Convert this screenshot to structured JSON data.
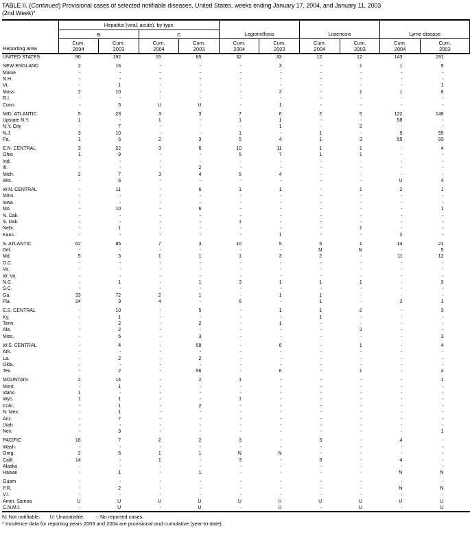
{
  "title": {
    "part1": "TABLE II. (",
    "part2_italic": "Continued",
    "part3": ") Provisional cases of selected notifiable diseases, United States, weeks ending January 17, 2004, and January 11, 2003",
    "line2": "(2nd Week)*"
  },
  "header": {
    "reporting_area": "Reporting area",
    "groups": {
      "hepatitis": "Hepatitis (viral, acute), by type",
      "hep_b": "B",
      "hep_c": "C",
      "legionellosis": "Legionellosis",
      "listeriosis": "Listeriosis",
      "lyme": "Lyme disease"
    },
    "col_headers": [
      {
        "l1": "Cum.",
        "l2": "2004"
      },
      {
        "l1": "Cum.",
        "l2": "2003"
      },
      {
        "l1": "Cum.",
        "l2": "2004"
      },
      {
        "l1": "Cum.",
        "l2": "2003"
      },
      {
        "l1": "Cum.",
        "l2": "2004"
      },
      {
        "l1": "Cum.",
        "l2": "2003"
      },
      {
        "l1": "Cum.",
        "l2": "2004"
      },
      {
        "l1": "Cum.",
        "l2": "2003"
      },
      {
        "l1": "Cum.",
        "l2": "2004"
      },
      {
        "l1": "Cum.",
        "l2": "2003"
      }
    ]
  },
  "sections": [
    {
      "rows": [
        {
          "area": "UNITED STATES",
          "values": [
            "90",
            "192",
            "15",
            "85",
            "32",
            "33",
            "12",
            "12",
            "143",
            "191"
          ]
        }
      ]
    },
    {
      "rows": [
        {
          "area": "NEW ENGLAND",
          "values": [
            "2",
            "16",
            "-",
            "-",
            "-",
            "3",
            "-",
            "1",
            "1",
            "9"
          ]
        },
        {
          "area": "Maine",
          "values": [
            "-",
            "-",
            "-",
            "-",
            "-",
            "-",
            "-",
            "-",
            "-",
            "-"
          ]
        },
        {
          "area": "N.H.",
          "values": [
            "-",
            "-",
            "-",
            "-",
            "-",
            "-",
            "-",
            "-",
            "-",
            "-"
          ]
        },
        {
          "area": "Vt.",
          "values": [
            "-",
            "1",
            "-",
            "-",
            "-",
            "-",
            "-",
            "-",
            "-",
            "1"
          ]
        },
        {
          "area": "Mass.",
          "values": [
            "2",
            "10",
            "-",
            "-",
            "-",
            "2",
            "-",
            "1",
            "1",
            "8"
          ]
        },
        {
          "area": "R.I.",
          "values": [
            "-",
            "-",
            "-",
            "-",
            "-",
            "-",
            "-",
            "-",
            "-",
            "-"
          ]
        },
        {
          "area": "Conn.",
          "values": [
            "-",
            "5",
            "U",
            "U",
            "-",
            "1",
            "-",
            "-",
            "-",
            "-"
          ]
        }
      ]
    },
    {
      "rows": [
        {
          "area": "MID. ATLANTIC",
          "values": [
            "5",
            "23",
            "3",
            "3",
            "7",
            "6",
            "2",
            "5",
            "122",
            "148"
          ]
        },
        {
          "area": "Upstate N.Y.",
          "values": [
            "1",
            "-",
            "1",
            "-",
            "1",
            "1",
            "-",
            "-",
            "58",
            "-"
          ]
        },
        {
          "area": "N.Y. City",
          "values": [
            "-",
            "7",
            "-",
            "-",
            "-",
            "1",
            "-",
            "2",
            "-",
            "-"
          ]
        },
        {
          "area": "N.J.",
          "values": [
            "3",
            "10",
            "-",
            "-",
            "1",
            "-",
            "1",
            "-",
            "9",
            "55"
          ]
        },
        {
          "area": "Pa.",
          "values": [
            "1",
            "6",
            "2",
            "3",
            "5",
            "4",
            "1",
            "3",
            "55",
            "93"
          ]
        }
      ]
    },
    {
      "rows": [
        {
          "area": "E.N. CENTRAL",
          "values": [
            "3",
            "22",
            "3",
            "6",
            "10",
            "11",
            "1",
            "1",
            "-",
            "4"
          ]
        },
        {
          "area": "Ohio",
          "values": [
            "1",
            "9",
            "-",
            "-",
            "5",
            "7",
            "1",
            "1",
            "-",
            "-"
          ]
        },
        {
          "area": "Ind.",
          "values": [
            "-",
            "-",
            "-",
            "-",
            "-",
            "-",
            "-",
            "-",
            "-",
            "-"
          ]
        },
        {
          "area": "Ill.",
          "values": [
            "-",
            "-",
            "-",
            "2",
            "-",
            "-",
            "-",
            "-",
            "-",
            "-"
          ]
        },
        {
          "area": "Mich.",
          "values": [
            "2",
            "7",
            "3",
            "4",
            "5",
            "4",
            "-",
            "-",
            "-",
            "-"
          ]
        },
        {
          "area": "Wis.",
          "values": [
            "-",
            "6",
            "-",
            "-",
            "-",
            "-",
            "-",
            "-",
            "U",
            "4"
          ]
        }
      ]
    },
    {
      "rows": [
        {
          "area": "W.N. CENTRAL",
          "values": [
            "-",
            "11",
            "-",
            "6",
            "1",
            "1",
            "-",
            "1",
            "2",
            "1"
          ]
        },
        {
          "area": "Minn.",
          "values": [
            "-",
            "-",
            "-",
            "-",
            "-",
            "-",
            "-",
            "-",
            "-",
            "-"
          ]
        },
        {
          "area": "Iowa",
          "values": [
            "-",
            "-",
            "-",
            "-",
            "-",
            "-",
            "-",
            "-",
            "-",
            "-"
          ]
        },
        {
          "area": "Mo.",
          "values": [
            "-",
            "10",
            "-",
            "6",
            "-",
            "-",
            "-",
            "-",
            "-",
            "1"
          ]
        },
        {
          "area": "N. Dak.",
          "values": [
            "-",
            "-",
            "-",
            "-",
            "-",
            "-",
            "-",
            "-",
            "-",
            "-"
          ]
        },
        {
          "area": "S. Dak.",
          "values": [
            "-",
            "-",
            "-",
            "-",
            "1",
            "-",
            "-",
            "-",
            "-",
            "-"
          ]
        },
        {
          "area": "Nebr.",
          "values": [
            "-",
            "1",
            "-",
            "-",
            "-",
            "-",
            "-",
            "1",
            "-",
            "-"
          ]
        },
        {
          "area": "Kans.",
          "values": [
            "-",
            "-",
            "-",
            "-",
            "-",
            "1",
            "-",
            "-",
            "2",
            "-"
          ]
        }
      ]
    },
    {
      "rows": [
        {
          "area": "S. ATLANTIC",
          "values": [
            "62",
            "85",
            "7",
            "3",
            "10",
            "5",
            "5",
            "1",
            "14",
            "21"
          ]
        },
        {
          "area": "Del.",
          "values": [
            "-",
            "-",
            "-",
            "-",
            "-",
            "-",
            "N",
            "N",
            "-",
            "5"
          ]
        },
        {
          "area": "Md.",
          "values": [
            "5",
            "3",
            "1",
            "1",
            "1",
            "3",
            "2",
            "-",
            "11",
            "12"
          ]
        },
        {
          "area": "D.C.",
          "values": [
            "-",
            "-",
            "-",
            "-",
            "-",
            "-",
            "-",
            "-",
            "-",
            "-"
          ]
        },
        {
          "area": "Va.",
          "values": [
            "-",
            "-",
            "-",
            "-",
            "-",
            "-",
            "-",
            "-",
            "-",
            "-"
          ]
        },
        {
          "area": "W. Va.",
          "values": [
            "-",
            "-",
            "-",
            "-",
            "-",
            "-",
            "-",
            "-",
            "-",
            "-"
          ]
        },
        {
          "area": "N.C.",
          "values": [
            "-",
            "1",
            "-",
            "1",
            "3",
            "1",
            "1",
            "1",
            "-",
            "3"
          ]
        },
        {
          "area": "S.C.",
          "values": [
            "-",
            "-",
            "-",
            "-",
            "-",
            "-",
            "-",
            "-",
            "-",
            "-"
          ]
        },
        {
          "area": "Ga.",
          "values": [
            "33",
            "72",
            "2",
            "1",
            "-",
            "1",
            "1",
            "-",
            "-",
            "-"
          ]
        },
        {
          "area": "Fla.",
          "values": [
            "24",
            "9",
            "4",
            "-",
            "6",
            "-",
            "1",
            "-",
            "3",
            "1"
          ]
        }
      ]
    },
    {
      "rows": [
        {
          "area": "E.S. CENTRAL",
          "values": [
            "-",
            "10",
            "-",
            "5",
            "-",
            "1",
            "1",
            "2",
            "-",
            "3"
          ]
        },
        {
          "area": "Ky.",
          "values": [
            "-",
            "1",
            "-",
            "-",
            "-",
            "-",
            "1",
            "-",
            "-",
            "-"
          ]
        },
        {
          "area": "Tenn.",
          "values": [
            "-",
            "2",
            "-",
            "2",
            "-",
            "1",
            "-",
            "-",
            "-",
            "-"
          ]
        },
        {
          "area": "Ala.",
          "values": [
            "-",
            "2",
            "-",
            "-",
            "-",
            "-",
            "-",
            "2",
            "-",
            "-"
          ]
        },
        {
          "area": "Miss.",
          "values": [
            "-",
            "5",
            "-",
            "3",
            "-",
            "-",
            "-",
            "-",
            "-",
            "3"
          ]
        }
      ]
    },
    {
      "rows": [
        {
          "area": "W.S. CENTRAL",
          "values": [
            "-",
            "4",
            "-",
            "58",
            "-",
            "6",
            "-",
            "1",
            "-",
            "4"
          ]
        },
        {
          "area": "Ark.",
          "values": [
            "-",
            "-",
            "-",
            "-",
            "-",
            "-",
            "-",
            "-",
            "-",
            "-"
          ]
        },
        {
          "area": "La.",
          "values": [
            "-",
            "2",
            "-",
            "2",
            "-",
            "-",
            "-",
            "-",
            "-",
            "-"
          ]
        },
        {
          "area": "Okla.",
          "values": [
            "-",
            "-",
            "-",
            "-",
            "-",
            "-",
            "-",
            "-",
            "-",
            "-"
          ]
        },
        {
          "area": "Tex.",
          "values": [
            "-",
            "2",
            "-",
            "56",
            "-",
            "6",
            "-",
            "1",
            "-",
            "4"
          ]
        }
      ]
    },
    {
      "rows": [
        {
          "area": "MOUNTAIN",
          "values": [
            "2",
            "14",
            "-",
            "2",
            "1",
            "-",
            "-",
            "-",
            "-",
            "1"
          ]
        },
        {
          "area": "Mont.",
          "values": [
            "-",
            "1",
            "-",
            "-",
            "-",
            "-",
            "-",
            "-",
            "-",
            "-"
          ]
        },
        {
          "area": "Idaho",
          "values": [
            "1",
            "-",
            "-",
            "-",
            "-",
            "-",
            "-",
            "-",
            "-",
            "-"
          ]
        },
        {
          "area": "Wyo.",
          "values": [
            "1",
            "1",
            "-",
            "-",
            "1",
            "-",
            "-",
            "-",
            "-",
            "-"
          ]
        },
        {
          "area": "Colo.",
          "values": [
            "-",
            "1",
            "-",
            "2",
            "-",
            "-",
            "-",
            "-",
            "-",
            "-"
          ]
        },
        {
          "area": "N. Mex.",
          "values": [
            "-",
            "1",
            "-",
            "-",
            "-",
            "-",
            "-",
            "-",
            "-",
            "-"
          ]
        },
        {
          "area": "Ariz.",
          "values": [
            "-",
            "7",
            "-",
            "-",
            "-",
            "-",
            "-",
            "-",
            "-",
            "-"
          ]
        },
        {
          "area": "Utah",
          "values": [
            "-",
            "-",
            "-",
            "-",
            "-",
            "-",
            "-",
            "-",
            "-",
            "-"
          ]
        },
        {
          "area": "Nev.",
          "values": [
            "-",
            "3",
            "-",
            "-",
            "-",
            "-",
            "-",
            "-",
            "-",
            "1"
          ]
        }
      ]
    },
    {
      "rows": [
        {
          "area": "PACIFIC",
          "values": [
            "16",
            "7",
            "2",
            "2",
            "3",
            "-",
            "3",
            "-",
            "4",
            "-"
          ]
        },
        {
          "area": "Wash.",
          "values": [
            "-",
            "-",
            "-",
            "-",
            "-",
            "-",
            "-",
            "-",
            "-",
            "-"
          ]
        },
        {
          "area": "Oreg.",
          "values": [
            "2",
            "6",
            "1",
            "1",
            "N",
            "N",
            "-",
            "-",
            "-",
            "-"
          ]
        },
        {
          "area": "Calif.",
          "values": [
            "14",
            "-",
            "1",
            "-",
            "3",
            "-",
            "3",
            "-",
            "4",
            "-"
          ]
        },
        {
          "area": "Alaska",
          "values": [
            "-",
            "-",
            "-",
            "-",
            "-",
            "-",
            "-",
            "-",
            "-",
            "-"
          ]
        },
        {
          "area": "Hawaii",
          "values": [
            "-",
            "1",
            "-",
            "1",
            "-",
            "-",
            "-",
            "-",
            "N",
            "N"
          ]
        }
      ]
    },
    {
      "rows": [
        {
          "area": "Guam",
          "values": [
            "-",
            "-",
            "-",
            "-",
            "-",
            "-",
            "-",
            "-",
            "-",
            "-"
          ]
        },
        {
          "area": "P.R.",
          "values": [
            "-",
            "2",
            "-",
            "-",
            "-",
            "-",
            "-",
            "-",
            "N",
            "N"
          ]
        },
        {
          "area": "V.I.",
          "values": [
            "-",
            "-",
            "-",
            "-",
            "-",
            "-",
            "-",
            "-",
            "-",
            "-"
          ]
        },
        {
          "area": "Amer. Samoa",
          "values": [
            "U",
            "U",
            "U",
            "U",
            "U",
            "U",
            "U",
            "U",
            "U",
            "U"
          ]
        },
        {
          "area": "C.N.M.I.",
          "values": [
            "-",
            "U",
            "-",
            "U",
            "-",
            "U",
            "-",
            "U",
            "-",
            "U"
          ]
        }
      ]
    }
  ],
  "footnotes": {
    "legend": [
      "N: Not notifiable.",
      "U: Unavailable.",
      "-: No reported cases."
    ],
    "asterisk": "* Incidence data for reporting years 2003 and 2004 are provisional and cumulative (year-to-date)."
  }
}
